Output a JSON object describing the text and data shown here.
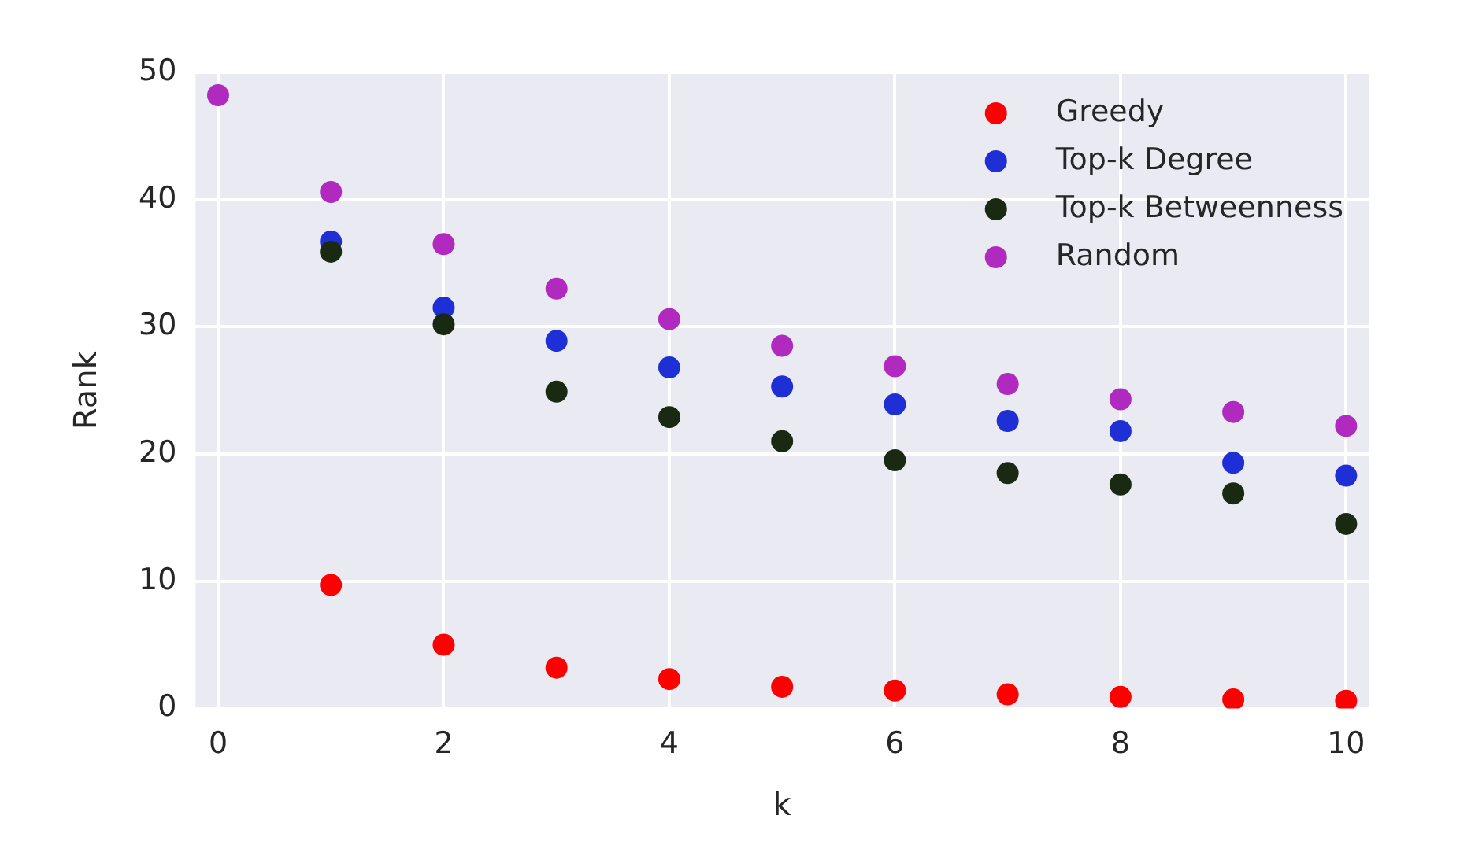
{
  "chart_data": {
    "type": "scatter",
    "xlabel": "k",
    "ylabel": "Rank",
    "x": [
      0,
      1,
      2,
      3,
      4,
      5,
      6,
      7,
      8,
      9,
      10
    ],
    "series": [
      {
        "name": "Greedy",
        "color": "#ff0000",
        "values": [
          null,
          9.7,
          5.0,
          3.2,
          2.3,
          1.7,
          1.4,
          1.1,
          0.9,
          0.7,
          0.6
        ]
      },
      {
        "name": "Top-k Degree",
        "color": "#1f2fd6",
        "values": [
          null,
          36.7,
          31.5,
          28.9,
          26.8,
          25.3,
          23.9,
          22.6,
          21.8,
          19.3,
          18.3
        ]
      },
      {
        "name": "Top-k Betweenness",
        "color": "#1a2a12",
        "values": [
          null,
          35.9,
          30.2,
          24.9,
          22.9,
          21.0,
          19.5,
          18.5,
          17.6,
          16.9,
          14.5
        ]
      },
      {
        "name": "Random",
        "color": "#b02ac0",
        "values": [
          48.2,
          40.6,
          36.5,
          33.0,
          30.6,
          28.5,
          26.9,
          25.5,
          24.3,
          23.3,
          22.2
        ]
      }
    ],
    "xlim": [
      -0.2,
      10.2
    ],
    "xticks": [
      0,
      2,
      4,
      6,
      8,
      10
    ],
    "ylim": [
      0,
      50
    ],
    "yticks": [
      0,
      10,
      20,
      30,
      40,
      50
    ],
    "grid": true,
    "legend": "top right",
    "marker": "circle"
  }
}
